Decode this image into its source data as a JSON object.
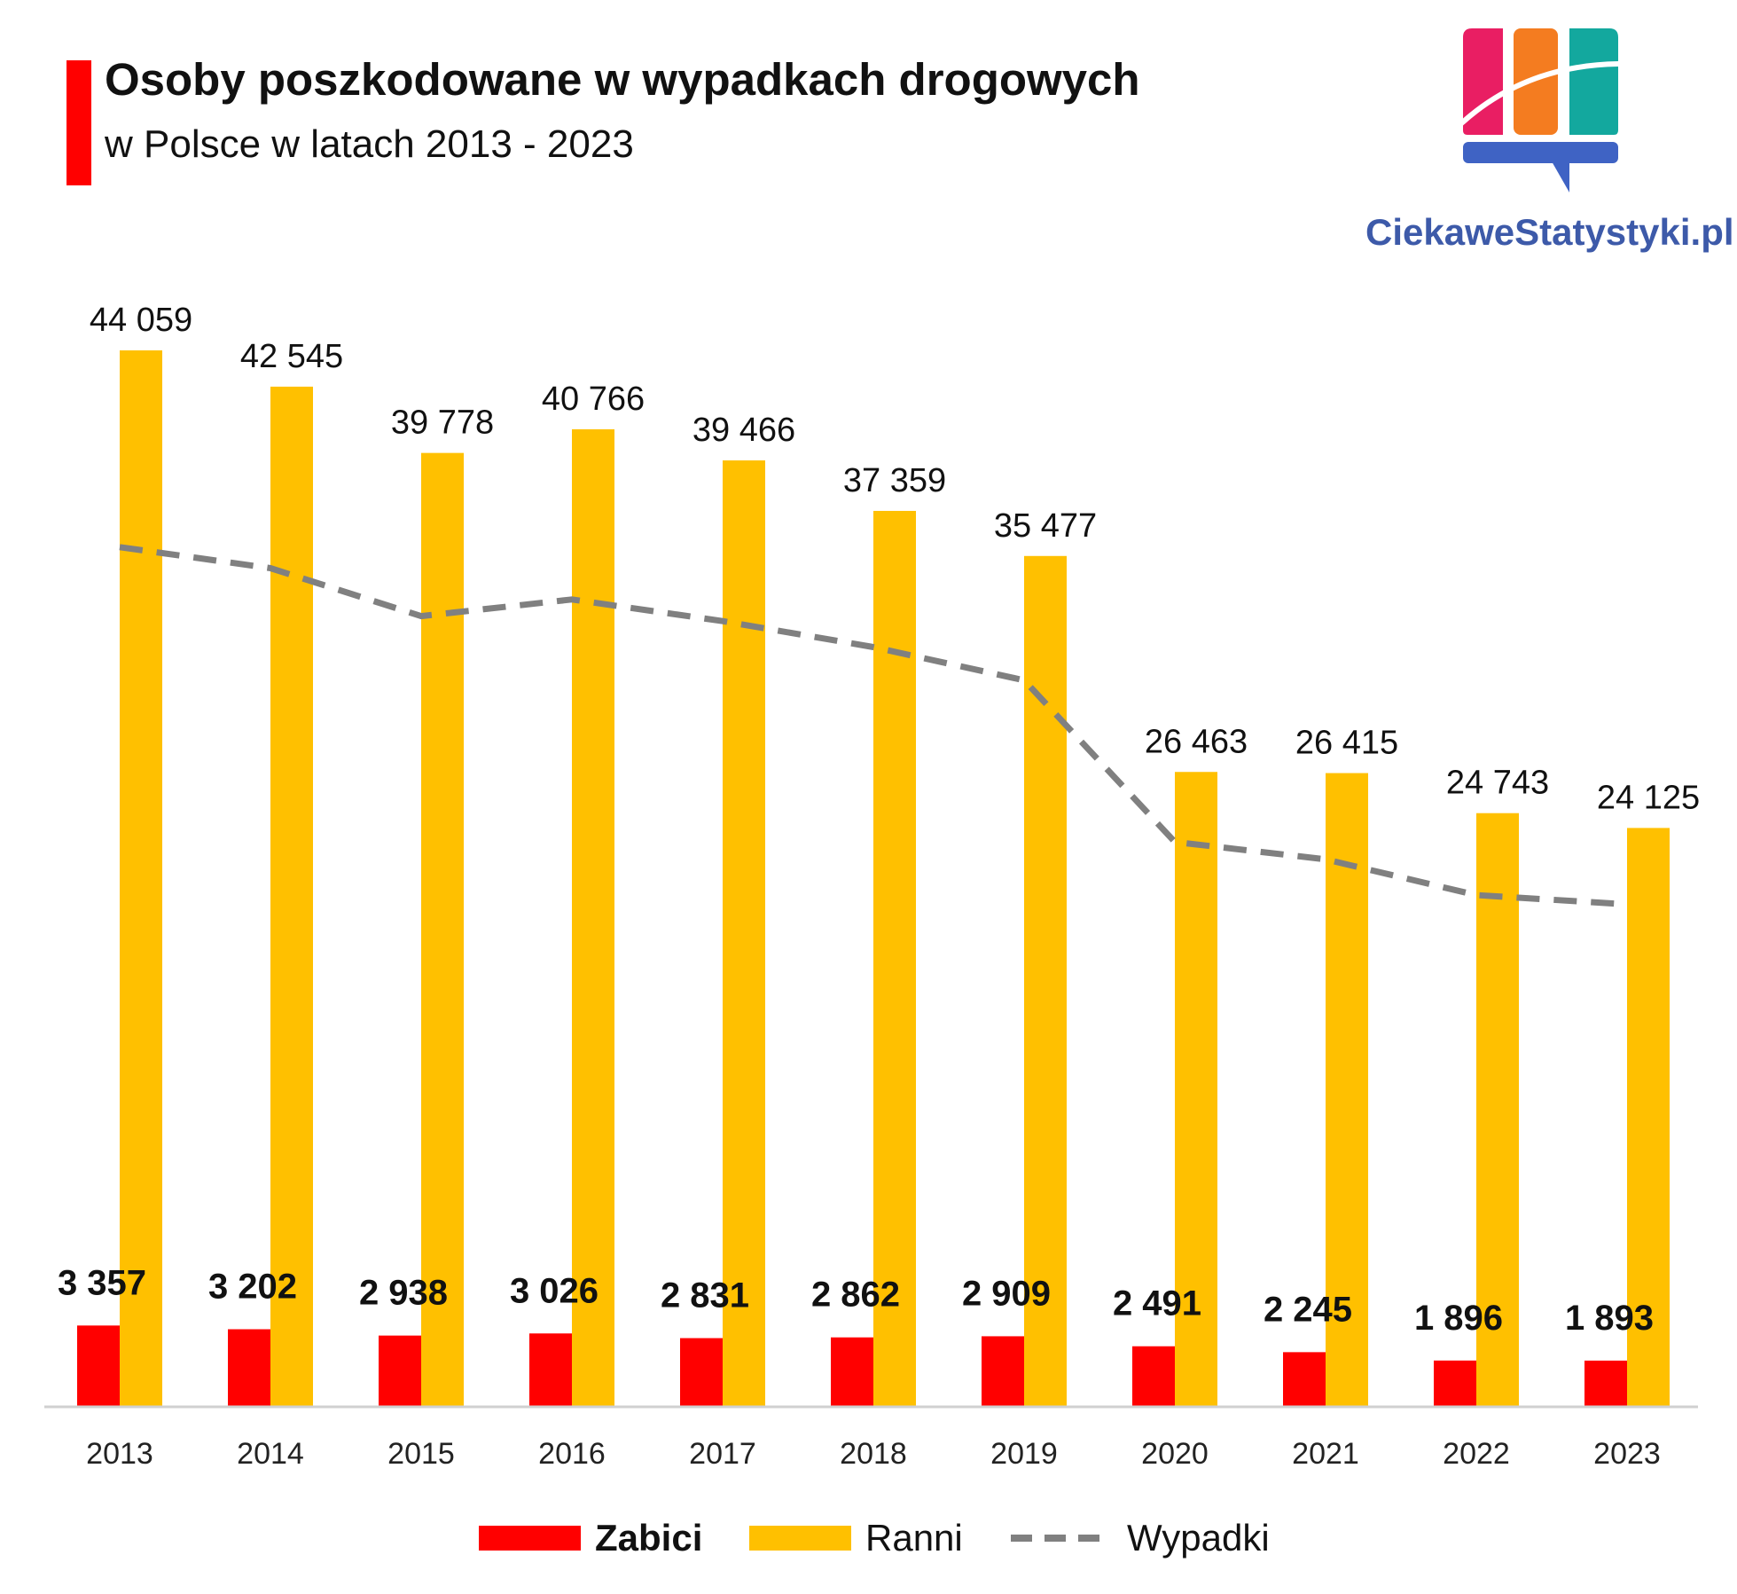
{
  "header": {
    "title": "Osoby poszkodowane w wypadkach drogowych",
    "subtitle": "w Polsce w latach 2013 - 2023",
    "accent_color": "#ff0000"
  },
  "brand": {
    "name": "CiekaweStatystyki.pl",
    "color": "#3d5aa9"
  },
  "chart_data": {
    "type": "bar",
    "categories": [
      "2013",
      "2014",
      "2015",
      "2016",
      "2017",
      "2018",
      "2019",
      "2020",
      "2021",
      "2022",
      "2023"
    ],
    "series": [
      {
        "name": "Zabici",
        "type": "bar",
        "color": "#ff0000",
        "values": [
          3357,
          3202,
          2938,
          3026,
          2831,
          2862,
          2909,
          2491,
          2245,
          1896,
          1893
        ],
        "labels": [
          "3 357",
          "3 202",
          "2 938",
          "3 026",
          "2 831",
          "2 862",
          "2 909",
          "2 491",
          "2 245",
          "1 896",
          "1 893"
        ]
      },
      {
        "name": "Ranni",
        "type": "bar",
        "color": "#ffc000",
        "values": [
          44059,
          42545,
          39778,
          40766,
          39466,
          37359,
          35477,
          26463,
          26415,
          24743,
          24125
        ],
        "labels": [
          "44 059",
          "42 545",
          "39 778",
          "40 766",
          "39 466",
          "37 359",
          "35 477",
          "26 463",
          "26 415",
          "24 743",
          "24 125"
        ]
      },
      {
        "name": "Wypadki",
        "type": "line",
        "style": "dashed",
        "color": "#808080",
        "values": [
          35847,
          34970,
          32967,
          33664,
          32760,
          31674,
          30288,
          23540,
          22816,
          21322,
          20936
        ]
      }
    ],
    "ylim": [
      0,
      46000
    ],
    "grid": false,
    "legend": "bottom"
  }
}
